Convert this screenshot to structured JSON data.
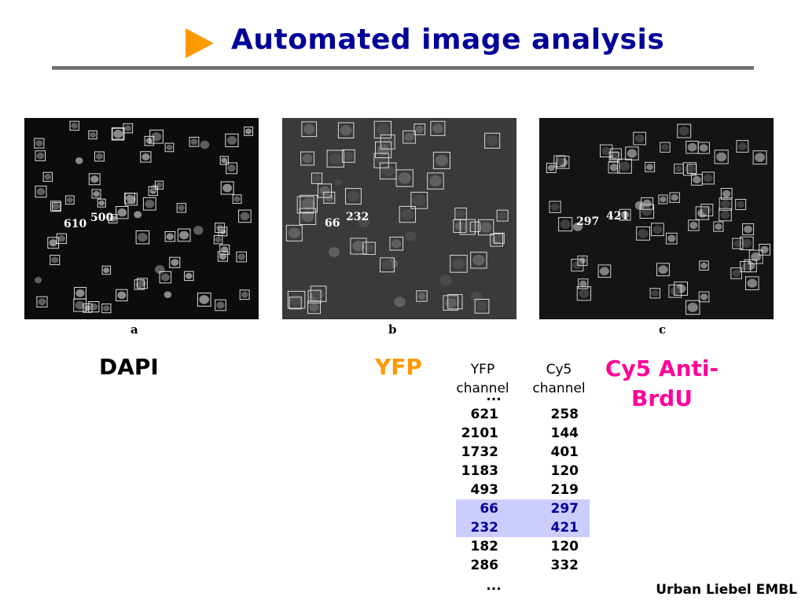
{
  "title": "Automated image analysis",
  "panels": [
    {
      "letter": "a",
      "channel": "DAPI",
      "annotations": [
        "610",
        "500"
      ]
    },
    {
      "letter": "b",
      "channel": "YFP",
      "annotations": [
        "66",
        "232"
      ]
    },
    {
      "letter": "c",
      "channel": "Cy5 Anti-BrdU",
      "annotations": [
        "297",
        "421"
      ]
    }
  ],
  "table": {
    "headers": [
      {
        "line1": "YFP",
        "line2": "channel"
      },
      {
        "line1": "Cy5",
        "line2": "channel"
      }
    ],
    "top_ellipsis": "...",
    "bottom_ellipsis": "...",
    "rows": [
      {
        "yfp": "621",
        "cy5": "258",
        "highlight": false
      },
      {
        "yfp": "2101",
        "cy5": "144",
        "highlight": false
      },
      {
        "yfp": "1732",
        "cy5": "401",
        "highlight": false
      },
      {
        "yfp": "1183",
        "cy5": "120",
        "highlight": false
      },
      {
        "yfp": "493",
        "cy5": "219",
        "highlight": false
      },
      {
        "yfp": "66",
        "cy5": "297",
        "highlight": true
      },
      {
        "yfp": "232",
        "cy5": "421",
        "highlight": true
      },
      {
        "yfp": "182",
        "cy5": "120",
        "highlight": false
      },
      {
        "yfp": "286",
        "cy5": "332",
        "highlight": false
      }
    ]
  },
  "footer": "Urban Liebel EMBL",
  "colors": {
    "title": "#000099",
    "arrow": "#ff9900",
    "dapi": "#000000",
    "yfp": "#ff9900",
    "cy5": "#ff0099",
    "highlight_bg": "#ccccff",
    "highlight_text": "#000099"
  }
}
